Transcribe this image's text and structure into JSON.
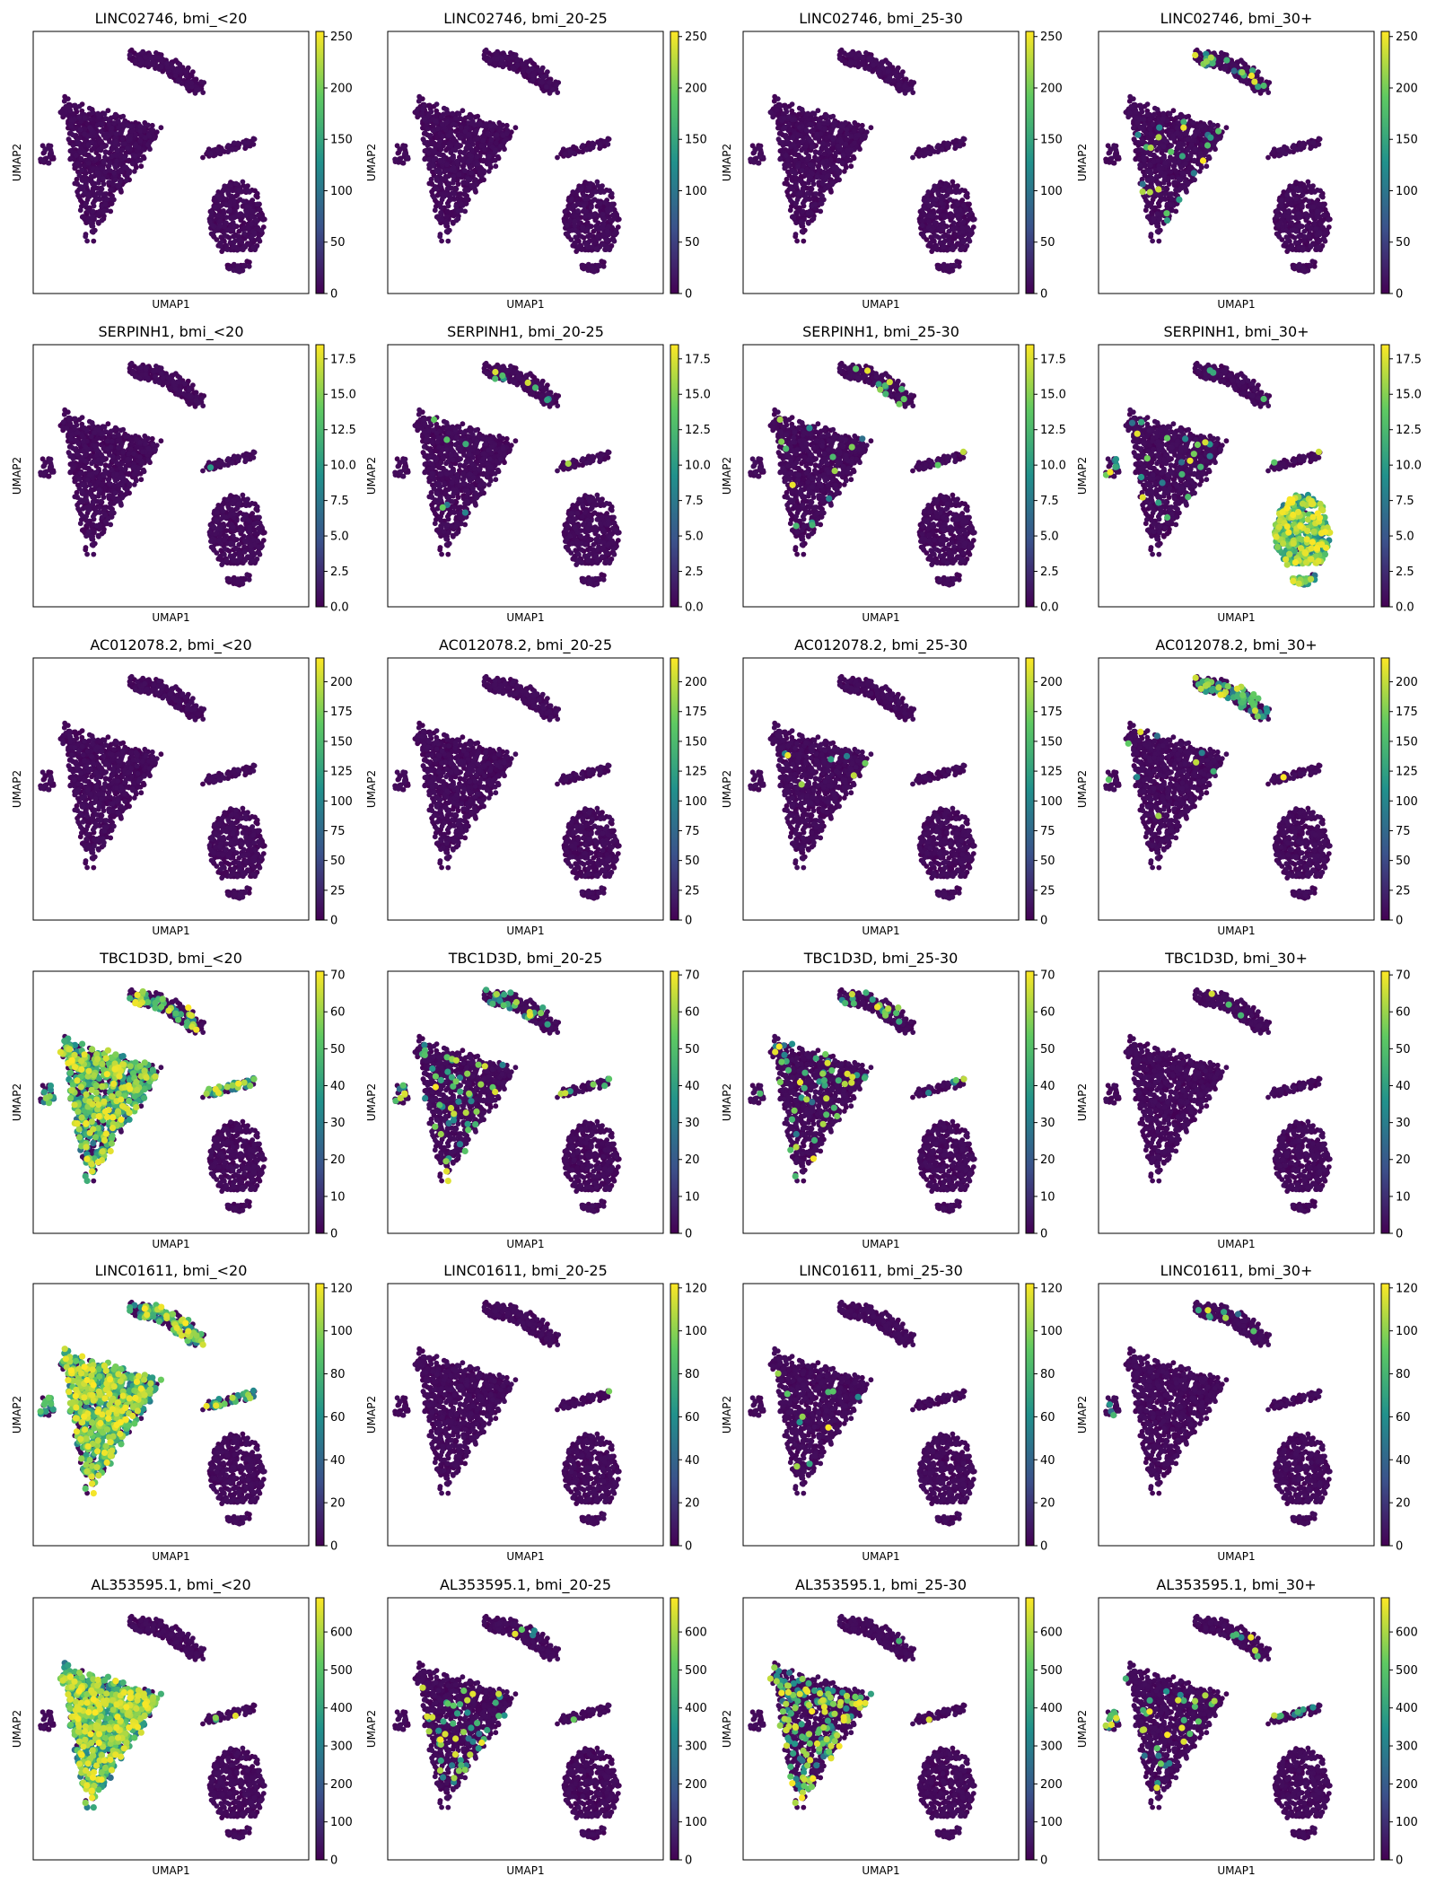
{
  "figure": {
    "columns": 4,
    "rows": 6,
    "xlabel": "UMAP1",
    "ylabel": "UMAP2",
    "colormap": [
      "#440154",
      "#3b528b",
      "#21918c",
      "#5ec962",
      "#fde725"
    ],
    "groups": [
      "bmi_<20",
      "bmi_20-25",
      "bmi_25-30",
      "bmi_30+"
    ]
  },
  "chart_data": [
    {
      "type": "scatter",
      "title": "LINC02746, bmi_<20",
      "gene": "LINC02746",
      "group": "bmi_<20",
      "colorbar": {
        "min": 0,
        "max": 255,
        "ticks": [
          0,
          50,
          100,
          150,
          200,
          250
        ],
        "tick_labels": [
          "0",
          "50",
          "100",
          "150",
          "200",
          "250"
        ]
      },
      "highlight": {
        "main": 0,
        "top": 0,
        "side": 0,
        "island": 0,
        "low": 0
      }
    },
    {
      "type": "scatter",
      "title": "LINC02746, bmi_20-25",
      "gene": "LINC02746",
      "group": "bmi_20-25",
      "colorbar": {
        "min": 0,
        "max": 255,
        "ticks": [
          0,
          50,
          100,
          150,
          200,
          250
        ],
        "tick_labels": [
          "0",
          "50",
          "100",
          "150",
          "200",
          "250"
        ]
      },
      "highlight": {
        "main": 0,
        "top": 0,
        "side": 0,
        "island": 0,
        "low": 0
      }
    },
    {
      "type": "scatter",
      "title": "LINC02746, bmi_25-30",
      "gene": "LINC02746",
      "group": "bmi_25-30",
      "colorbar": {
        "min": 0,
        "max": 255,
        "ticks": [
          0,
          50,
          100,
          150,
          200,
          250
        ],
        "tick_labels": [
          "0",
          "50",
          "100",
          "150",
          "200",
          "250"
        ]
      },
      "highlight": {
        "main": 0,
        "top": 0,
        "side": 0,
        "island": 0,
        "low": 0
      }
    },
    {
      "type": "scatter",
      "title": "LINC02746, bmi_30+",
      "gene": "LINC02746",
      "group": "bmi_30+",
      "colorbar": {
        "min": 0,
        "max": 255,
        "ticks": [
          0,
          50,
          100,
          150,
          200,
          250
        ],
        "tick_labels": [
          "0",
          "50",
          "100",
          "150",
          "200",
          "250"
        ]
      },
      "highlight": {
        "main": 0.02,
        "top": 0.08,
        "side": 0,
        "island": 0,
        "low": 0
      }
    },
    {
      "type": "scatter",
      "title": "SERPINH1, bmi_<20",
      "gene": "SERPINH1",
      "group": "bmi_<20",
      "colorbar": {
        "min": 0,
        "max": 18.5,
        "ticks": [
          0,
          2.5,
          5,
          7.5,
          10,
          12.5,
          15,
          17.5
        ],
        "tick_labels": [
          "0.0",
          "2.5",
          "5.0",
          "7.5",
          "10.0",
          "12.5",
          "15.0",
          "17.5"
        ]
      },
      "highlight": {
        "main": 0,
        "top": 0,
        "side": 0,
        "island": 0.01,
        "low": 0
      }
    },
    {
      "type": "scatter",
      "title": "SERPINH1, bmi_20-25",
      "gene": "SERPINH1",
      "group": "bmi_20-25",
      "colorbar": {
        "min": 0,
        "max": 18.5,
        "ticks": [
          0,
          2.5,
          5,
          7.5,
          10,
          12.5,
          15,
          17.5
        ],
        "tick_labels": [
          "0.0",
          "2.5",
          "5.0",
          "7.5",
          "10.0",
          "12.5",
          "15.0",
          "17.5"
        ]
      },
      "highlight": {
        "main": 0.01,
        "top": 0.02,
        "side": 0,
        "island": 0.02,
        "low": 0
      }
    },
    {
      "type": "scatter",
      "title": "SERPINH1, bmi_25-30",
      "gene": "SERPINH1",
      "group": "bmi_25-30",
      "colorbar": {
        "min": 0,
        "max": 18.5,
        "ticks": [
          0,
          2.5,
          5,
          7.5,
          10,
          12.5,
          15,
          17.5
        ],
        "tick_labels": [
          "0.0",
          "2.5",
          "5.0",
          "7.5",
          "10.0",
          "12.5",
          "15.0",
          "17.5"
        ]
      },
      "highlight": {
        "main": 0.01,
        "top": 0.05,
        "side": 0,
        "island": 0.02,
        "low": 0
      }
    },
    {
      "type": "scatter",
      "title": "SERPINH1, bmi_30+",
      "gene": "SERPINH1",
      "group": "bmi_30+",
      "colorbar": {
        "min": 0,
        "max": 18.5,
        "ticks": [
          0,
          2.5,
          5,
          7.5,
          10,
          12.5,
          15,
          17.5
        ],
        "tick_labels": [
          "0.0",
          "2.5",
          "5.0",
          "7.5",
          "10.0",
          "12.5",
          "15.0",
          "17.5"
        ]
      },
      "highlight": {
        "main": 0.02,
        "top": 0.02,
        "side": 0.15,
        "island": 0.05,
        "low": 0.95
      }
    },
    {
      "type": "scatter",
      "title": "AC012078.2, bmi_<20",
      "gene": "AC012078.2",
      "group": "bmi_<20",
      "colorbar": {
        "min": 0,
        "max": 220,
        "ticks": [
          0,
          25,
          50,
          75,
          100,
          125,
          150,
          175,
          200
        ],
        "tick_labels": [
          "0",
          "25",
          "50",
          "75",
          "100",
          "125",
          "150",
          "175",
          "200"
        ]
      },
      "highlight": {
        "main": 0,
        "top": 0,
        "side": 0,
        "island": 0,
        "low": 0
      }
    },
    {
      "type": "scatter",
      "title": "AC012078.2, bmi_20-25",
      "gene": "AC012078.2",
      "group": "bmi_20-25",
      "colorbar": {
        "min": 0,
        "max": 220,
        "ticks": [
          0,
          25,
          50,
          75,
          100,
          125,
          150,
          175,
          200
        ],
        "tick_labels": [
          "0",
          "25",
          "50",
          "75",
          "100",
          "125",
          "150",
          "175",
          "200"
        ]
      },
      "highlight": {
        "main": 0,
        "top": 0,
        "side": 0,
        "island": 0,
        "low": 0
      }
    },
    {
      "type": "scatter",
      "title": "AC012078.2, bmi_25-30",
      "gene": "AC012078.2",
      "group": "bmi_25-30",
      "colorbar": {
        "min": 0,
        "max": 220,
        "ticks": [
          0,
          25,
          50,
          75,
          100,
          125,
          150,
          175,
          200
        ],
        "tick_labels": [
          "0",
          "25",
          "50",
          "75",
          "100",
          "125",
          "150",
          "175",
          "200"
        ]
      },
      "highlight": {
        "main": 0.01,
        "top": 0,
        "side": 0,
        "island": 0,
        "low": 0
      }
    },
    {
      "type": "scatter",
      "title": "AC012078.2, bmi_30+",
      "gene": "AC012078.2",
      "group": "bmi_30+",
      "colorbar": {
        "min": 0,
        "max": 220,
        "ticks": [
          0,
          25,
          50,
          75,
          100,
          125,
          150,
          175,
          200
        ],
        "tick_labels": [
          "0",
          "25",
          "50",
          "75",
          "100",
          "125",
          "150",
          "175",
          "200"
        ]
      },
      "highlight": {
        "main": 0.01,
        "top": 0.3,
        "side": 0.05,
        "island": 0.02,
        "low": 0
      }
    },
    {
      "type": "scatter",
      "title": "TBC1D3D, bmi_<20",
      "gene": "TBC1D3D",
      "group": "bmi_<20",
      "colorbar": {
        "min": 0,
        "max": 71,
        "ticks": [
          0,
          10,
          20,
          30,
          40,
          50,
          60,
          70
        ],
        "tick_labels": [
          "0",
          "10",
          "20",
          "30",
          "40",
          "50",
          "60",
          "70"
        ]
      },
      "highlight": {
        "main": 0.55,
        "top": 0.2,
        "side": 0.3,
        "island": 0.45,
        "low": 0
      }
    },
    {
      "type": "scatter",
      "title": "TBC1D3D, bmi_20-25",
      "gene": "TBC1D3D",
      "group": "bmi_20-25",
      "colorbar": {
        "min": 0,
        "max": 71,
        "ticks": [
          0,
          10,
          20,
          30,
          40,
          50,
          60,
          70
        ],
        "tick_labels": [
          "0",
          "10",
          "20",
          "30",
          "40",
          "50",
          "60",
          "70"
        ]
      },
      "highlight": {
        "main": 0.05,
        "top": 0.1,
        "side": 0.2,
        "island": 0.15,
        "low": 0
      }
    },
    {
      "type": "scatter",
      "title": "TBC1D3D, bmi_25-30",
      "gene": "TBC1D3D",
      "group": "bmi_25-30",
      "colorbar": {
        "min": 0,
        "max": 71,
        "ticks": [
          0,
          10,
          20,
          30,
          40,
          50,
          60,
          70
        ],
        "tick_labels": [
          "0",
          "10",
          "20",
          "30",
          "40",
          "50",
          "60",
          "70"
        ]
      },
      "highlight": {
        "main": 0.05,
        "top": 0.1,
        "side": 0.1,
        "island": 0.1,
        "low": 0
      }
    },
    {
      "type": "scatter",
      "title": "TBC1D3D, bmi_30+",
      "gene": "TBC1D3D",
      "group": "bmi_30+",
      "colorbar": {
        "min": 0,
        "max": 71,
        "ticks": [
          0,
          10,
          20,
          30,
          40,
          50,
          60,
          70
        ],
        "tick_labels": [
          "0",
          "10",
          "20",
          "30",
          "40",
          "50",
          "60",
          "70"
        ]
      },
      "highlight": {
        "main": 0,
        "top": 0.02,
        "side": 0,
        "island": 0,
        "low": 0
      }
    },
    {
      "type": "scatter",
      "title": "LINC01611, bmi_<20",
      "gene": "LINC01611",
      "group": "bmi_<20",
      "colorbar": {
        "min": 0,
        "max": 122,
        "ticks": [
          0,
          20,
          40,
          60,
          80,
          100,
          120
        ],
        "tick_labels": [
          "0",
          "20",
          "40",
          "60",
          "80",
          "100",
          "120"
        ]
      },
      "highlight": {
        "main": 0.7,
        "top": 0.45,
        "side": 0.4,
        "island": 0.35,
        "low": 0
      }
    },
    {
      "type": "scatter",
      "title": "LINC01611, bmi_20-25",
      "gene": "LINC01611",
      "group": "bmi_20-25",
      "colorbar": {
        "min": 0,
        "max": 122,
        "ticks": [
          0,
          20,
          40,
          60,
          80,
          100,
          120
        ],
        "tick_labels": [
          "0",
          "20",
          "40",
          "60",
          "80",
          "100",
          "120"
        ]
      },
      "highlight": {
        "main": 0,
        "top": 0,
        "side": 0,
        "island": 0.01,
        "low": 0
      }
    },
    {
      "type": "scatter",
      "title": "LINC01611, bmi_25-30",
      "gene": "LINC01611",
      "group": "bmi_25-30",
      "colorbar": {
        "min": 0,
        "max": 122,
        "ticks": [
          0,
          20,
          40,
          60,
          80,
          100,
          120
        ],
        "tick_labels": [
          "0",
          "20",
          "40",
          "60",
          "80",
          "100",
          "120"
        ]
      },
      "highlight": {
        "main": 0.01,
        "top": 0,
        "side": 0,
        "island": 0,
        "low": 0
      }
    },
    {
      "type": "scatter",
      "title": "LINC01611, bmi_30+",
      "gene": "LINC01611",
      "group": "bmi_30+",
      "colorbar": {
        "min": 0,
        "max": 122,
        "ticks": [
          0,
          20,
          40,
          60,
          80,
          100,
          120
        ],
        "tick_labels": [
          "0",
          "20",
          "40",
          "60",
          "80",
          "100",
          "120"
        ]
      },
      "highlight": {
        "main": 0,
        "top": 0.02,
        "side": 0.1,
        "island": 0,
        "low": 0
      }
    },
    {
      "type": "scatter",
      "title": "AL353595.1, bmi_<20",
      "gene": "AL353595.1",
      "group": "bmi_<20",
      "colorbar": {
        "min": 0,
        "max": 690,
        "ticks": [
          0,
          100,
          200,
          300,
          400,
          500,
          600
        ],
        "tick_labels": [
          "0",
          "100",
          "200",
          "300",
          "400",
          "500",
          "600"
        ]
      },
      "highlight": {
        "main": 0.85,
        "top": 0,
        "side": 0,
        "island": 0.03,
        "low": 0
      }
    },
    {
      "type": "scatter",
      "title": "AL353595.1, bmi_20-25",
      "gene": "AL353595.1",
      "group": "bmi_20-25",
      "colorbar": {
        "min": 0,
        "max": 690,
        "ticks": [
          0,
          100,
          200,
          300,
          400,
          500,
          600
        ],
        "tick_labels": [
          "0",
          "100",
          "200",
          "300",
          "400",
          "500",
          "600"
        ]
      },
      "highlight": {
        "main": 0.06,
        "top": 0.02,
        "side": 0,
        "island": 0.03,
        "low": 0
      }
    },
    {
      "type": "scatter",
      "title": "AL353595.1, bmi_25-30",
      "gene": "AL353595.1",
      "group": "bmi_25-30",
      "colorbar": {
        "min": 0,
        "max": 690,
        "ticks": [
          0,
          100,
          200,
          300,
          400,
          500,
          600
        ],
        "tick_labels": [
          "0",
          "100",
          "200",
          "300",
          "400",
          "500",
          "600"
        ]
      },
      "highlight": {
        "main": 0.15,
        "top": 0.02,
        "side": 0,
        "island": 0.02,
        "low": 0
      }
    },
    {
      "type": "scatter",
      "title": "AL353595.1, bmi_30+",
      "gene": "AL353595.1",
      "group": "bmi_30+",
      "colorbar": {
        "min": 0,
        "max": 690,
        "ticks": [
          0,
          100,
          200,
          300,
          400,
          500,
          600
        ],
        "tick_labels": [
          "0",
          "100",
          "200",
          "300",
          "400",
          "500",
          "600"
        ]
      },
      "highlight": {
        "main": 0.03,
        "top": 0.02,
        "side": 0.3,
        "island": 0.08,
        "low": 0
      }
    }
  ]
}
